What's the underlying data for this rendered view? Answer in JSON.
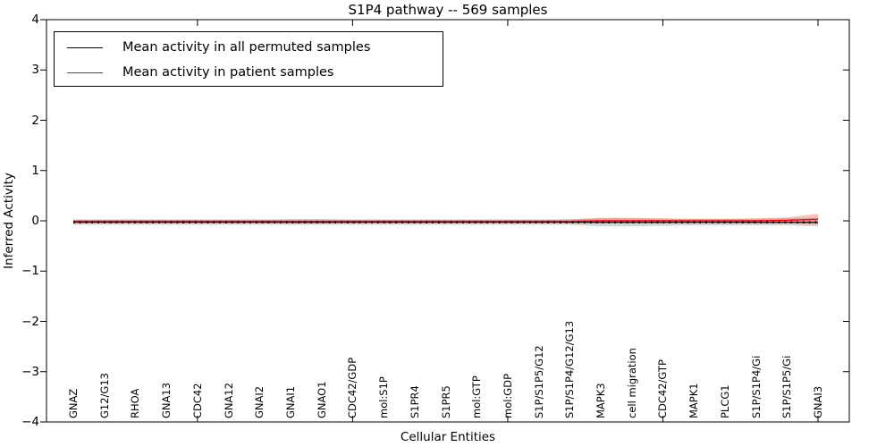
{
  "title": "S1P4 pathway -- 569 samples",
  "axes": {
    "xlabel": "Cellular Entities",
    "ylabel": "Inferred Activity",
    "y_tick_labels": [
      "4",
      "3",
      "2",
      "1",
      "0",
      "−1",
      "−2",
      "−3",
      "−4"
    ]
  },
  "legend": {
    "items": [
      {
        "label": "Mean activity in all permuted samples",
        "color": "#000000"
      },
      {
        "label": "Mean activity in patient samples",
        "color": "#ff0000"
      }
    ]
  },
  "chart_data": {
    "type": "line",
    "title": "S1P4 pathway -- 569 samples",
    "xlabel": "Cellular Entities",
    "ylabel": "Inferred Activity",
    "ylim": [
      -4,
      4
    ],
    "y_ticks": [
      4,
      3,
      2,
      1,
      0,
      -1,
      -2,
      -3,
      -4
    ],
    "x_values": [
      1,
      2,
      3,
      4,
      5,
      6,
      7,
      8,
      9,
      10,
      11,
      12,
      13,
      14,
      15,
      16,
      17,
      18,
      19,
      20,
      21,
      22,
      23,
      24,
      25
    ],
    "x_major_ticks": [
      5,
      10,
      15,
      20,
      25
    ],
    "grid": false,
    "legend_position": "upper left",
    "categories": [
      "GNAZ",
      "G12/G13",
      "RHOA",
      "GNA13",
      "CDC42",
      "GNA12",
      "GNAI2",
      "GNAI1",
      "GNAO1",
      "CDC42/GDP",
      "mol:S1P",
      "S1PR4",
      "S1PR5",
      "mol:GTP",
      "mol:GDP",
      "S1P/S1P5/G12",
      "S1P/S1P4/G12/G13",
      "MAPK3",
      "cell migration",
      "CDC42/GTP",
      "MAPK1",
      "PLCG1",
      "S1P/S1P4/Gi",
      "S1P/S1P5/Gi",
      "GNAI3"
    ],
    "series": [
      {
        "name": "Mean activity in all permuted samples",
        "color": "#000000",
        "band_color": "rgba(0,0,0,0.16)",
        "values": [
          -0.03,
          -0.03,
          -0.03,
          -0.03,
          -0.03,
          -0.03,
          -0.03,
          -0.03,
          -0.03,
          -0.03,
          -0.03,
          -0.03,
          -0.03,
          -0.03,
          -0.03,
          -0.03,
          -0.03,
          -0.03,
          -0.03,
          -0.03,
          -0.03,
          -0.03,
          -0.03,
          -0.03,
          -0.03
        ],
        "band_high": [
          0.03,
          0.03,
          0.03,
          0.03,
          0.03,
          0.03,
          0.03,
          0.03,
          0.03,
          0.03,
          0.03,
          0.03,
          0.03,
          0.03,
          0.03,
          0.03,
          0.03,
          0.05,
          0.05,
          0.04,
          0.04,
          0.04,
          0.04,
          0.05,
          0.06
        ],
        "band_low": [
          -0.08,
          -0.08,
          -0.08,
          -0.08,
          -0.08,
          -0.08,
          -0.08,
          -0.08,
          -0.08,
          -0.08,
          -0.08,
          -0.08,
          -0.08,
          -0.08,
          -0.08,
          -0.08,
          -0.08,
          -0.11,
          -0.11,
          -0.1,
          -0.09,
          -0.09,
          -0.09,
          -0.09,
          -0.11
        ]
      },
      {
        "name": "Mean activity in patient samples",
        "color": "#ff0000",
        "band_color": "rgba(255,0,0,0.25)",
        "values": [
          -0.01,
          -0.01,
          -0.01,
          -0.01,
          -0.01,
          -0.01,
          -0.01,
          -0.01,
          -0.01,
          -0.01,
          -0.01,
          -0.01,
          -0.01,
          -0.01,
          -0.01,
          -0.01,
          -0.01,
          0,
          0,
          0,
          0,
          0,
          0,
          0.01,
          0.03
        ],
        "band_high": [
          0.02,
          0.02,
          0.02,
          0.02,
          0.02,
          0.02,
          0.02,
          0.03,
          0.03,
          0.02,
          0.02,
          0.02,
          0.02,
          0.02,
          0.02,
          0.02,
          0.03,
          0.06,
          0.06,
          0.05,
          0.04,
          0.04,
          0.05,
          0.07,
          0.14
        ],
        "band_low": [
          -0.04,
          -0.04,
          -0.04,
          -0.04,
          -0.04,
          -0.04,
          -0.04,
          -0.05,
          -0.05,
          -0.04,
          -0.04,
          -0.04,
          -0.04,
          -0.04,
          -0.04,
          -0.04,
          -0.04,
          -0.05,
          -0.05,
          -0.05,
          -0.04,
          -0.04,
          -0.05,
          -0.05,
          -0.07
        ]
      }
    ]
  }
}
